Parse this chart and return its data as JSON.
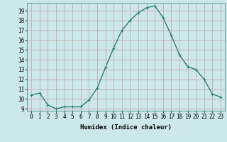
{
  "x": [
    0,
    1,
    2,
    3,
    4,
    5,
    6,
    7,
    8,
    9,
    10,
    11,
    12,
    13,
    14,
    15,
    16,
    17,
    18,
    19,
    20,
    21,
    22,
    23
  ],
  "y": [
    10.4,
    10.6,
    9.4,
    9.0,
    9.2,
    9.2,
    9.2,
    9.9,
    11.1,
    13.2,
    15.2,
    17.0,
    18.0,
    18.8,
    19.3,
    19.5,
    18.3,
    16.5,
    14.5,
    13.3,
    13.0,
    12.0,
    10.5,
    10.2
  ],
  "xlabel": "Humidex (Indice chaleur)",
  "xlim": [
    -0.5,
    23.5
  ],
  "ylim": [
    8.8,
    19.8
  ],
  "yticks": [
    9,
    10,
    11,
    12,
    13,
    14,
    15,
    16,
    17,
    18,
    19
  ],
  "xticks": [
    0,
    1,
    2,
    3,
    4,
    5,
    6,
    7,
    8,
    9,
    10,
    11,
    12,
    13,
    14,
    15,
    16,
    17,
    18,
    19,
    20,
    21,
    22,
    23
  ],
  "line_color": "#2e7d6e",
  "marker": "+",
  "bg_color": "#cce8e8",
  "grid_color": "#c0a0a0",
  "label_fontsize": 6.5,
  "tick_fontsize": 5.5
}
